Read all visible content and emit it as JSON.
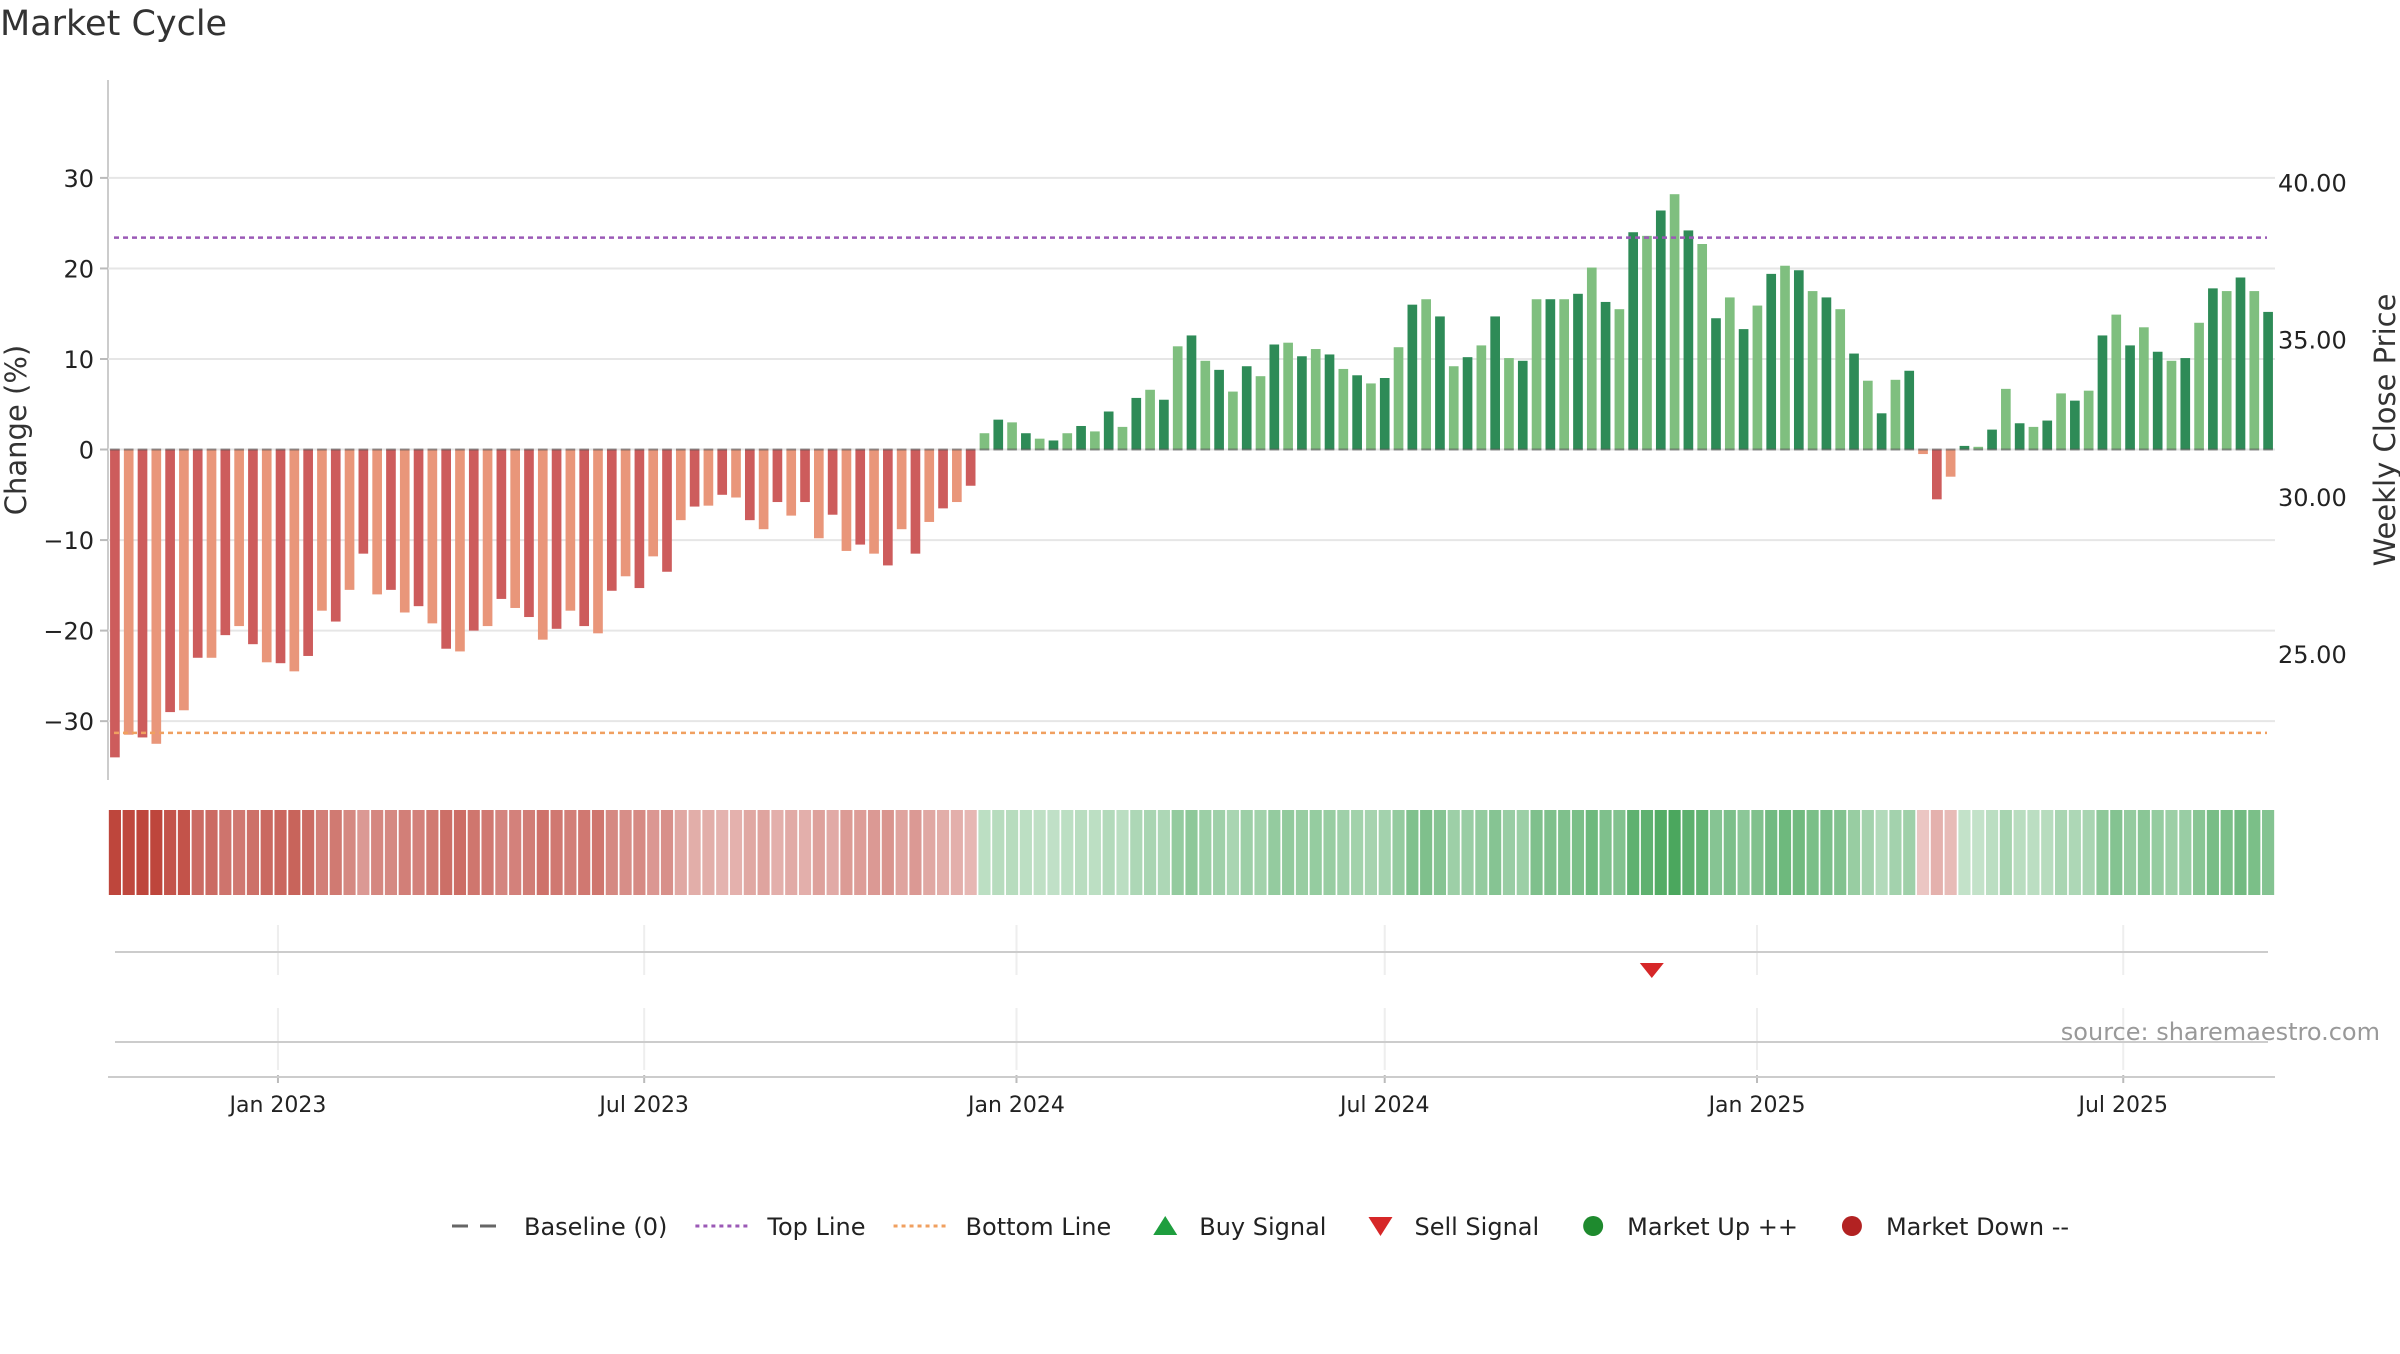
{
  "chart_data": {
    "type": "bar",
    "title": "Market Cycle",
    "ylabel": "Change (%)",
    "y2label": "Weekly Close Price",
    "source": "source: sharemaestro.com",
    "ylim": [
      -36.5,
      37.5
    ],
    "y2lim": [
      21.0,
      42.3
    ],
    "yticks": [
      30,
      20,
      10,
      0,
      -10,
      -20,
      -30
    ],
    "ytick_labels": [
      "30",
      "20",
      "10",
      "0",
      "−10",
      "−20",
      "−30"
    ],
    "y2ticks": [
      40,
      35,
      30,
      25
    ],
    "y2tick_labels": [
      "40.00",
      "35.00",
      "30.00",
      "25.00"
    ],
    "x_start": "2022-10-09",
    "x_end": "2025-09-14",
    "xticks": [
      "2023-01-01",
      "2023-07-01",
      "2024-01-01",
      "2024-07-01",
      "2025-01-01",
      "2025-07-01"
    ],
    "xtick_labels": [
      "Jan 2023",
      "Jul 2023",
      "Jan 2024",
      "Jul 2024",
      "Jan 2025",
      "Jul 2025"
    ],
    "top_line": 23.4,
    "bottom_line": -31.3,
    "baseline": 0,
    "sell_signals": [
      "2024-11-10"
    ],
    "buy_signals": [],
    "grid": true,
    "legend_position": "bottom-center",
    "legend": [
      {
        "label": "Baseline (0)",
        "symbol": "dash",
        "color": "#666666"
      },
      {
        "label": "Top Line",
        "symbol": "dotted",
        "color": "#9b59b6"
      },
      {
        "label": "Bottom Line",
        "symbol": "dotted",
        "color": "#f0a060"
      },
      {
        "label": "Buy Signal",
        "symbol": "triangle-up",
        "color": "#1e9e3e"
      },
      {
        "label": "Sell Signal",
        "symbol": "triangle-down",
        "color": "#d62728"
      },
      {
        "label": "Market Up ++",
        "symbol": "circle",
        "color": "#1e8a2e"
      },
      {
        "label": "Market Down --",
        "symbol": "circle",
        "color": "#b22222"
      }
    ],
    "colors": {
      "up_dark": "#2e8b57",
      "up_light": "#7fbf7f",
      "down_dark": "#cd5c5c",
      "down_light": "#e9967a",
      "top_line": "#9b59b6",
      "bottom_line": "#f0a060",
      "sell": "#d62728",
      "buy": "#1e9e3e"
    },
    "series": [
      {
        "values": [
          -34.0,
          -31.5,
          -31.8,
          -32.5,
          -29.0,
          -28.8,
          -23.0,
          -23.0,
          -20.5,
          -19.5,
          -21.5,
          -23.5,
          -23.6,
          -24.5,
          -22.8,
          -17.8,
          -19.0,
          -15.5,
          -11.5,
          -16.0,
          -15.5,
          -18.0,
          -17.3,
          -19.2,
          -22.0,
          -22.3,
          -20.0,
          -19.5,
          -16.5,
          -17.5,
          -18.5,
          -21.0,
          -19.8,
          -17.8,
          -19.5,
          -20.3,
          -15.6,
          -14.0,
          -15.3,
          -11.8,
          -13.5,
          -7.8,
          -6.3,
          -6.2,
          -5.0,
          -5.3,
          -7.8,
          -8.8,
          -5.8,
          -7.3,
          -5.8,
          -9.8,
          -7.2,
          -11.2,
          -10.5,
          -11.5,
          -12.8,
          -8.8,
          -11.5,
          -8.0,
          -6.5,
          -5.8,
          -4.0,
          1.8,
          3.3,
          3.0,
          1.8,
          1.2,
          1.0,
          1.8,
          2.6,
          2.0,
          4.2,
          2.5,
          5.7,
          6.6,
          5.5,
          11.4,
          12.6,
          9.8,
          8.8,
          6.4,
          9.2,
          8.1,
          11.6,
          11.8,
          10.3,
          11.1,
          10.5,
          8.9,
          8.2,
          7.3,
          7.9,
          11.3,
          16.0,
          16.6,
          14.7,
          9.2,
          10.2,
          11.5,
          14.7,
          10.1,
          9.8,
          16.6,
          16.6,
          16.6,
          17.2,
          20.1,
          16.3,
          15.5,
          24.0,
          23.6,
          26.4,
          28.2,
          24.2,
          22.7,
          14.5,
          16.8,
          13.3,
          15.9,
          19.4,
          20.3,
          19.8,
          17.5,
          16.8,
          15.5,
          10.6,
          7.6,
          4.0,
          7.7,
          8.7,
          -0.5,
          -5.5,
          -3.0,
          0.4,
          0.3,
          2.2,
          6.7,
          2.9,
          2.5,
          3.2,
          6.2,
          5.4,
          6.5,
          12.6,
          14.9,
          11.5,
          13.5,
          10.8,
          9.8,
          10.1,
          14.0,
          17.8,
          17.5,
          19.0,
          17.5,
          15.2
        ]
      }
    ]
  }
}
